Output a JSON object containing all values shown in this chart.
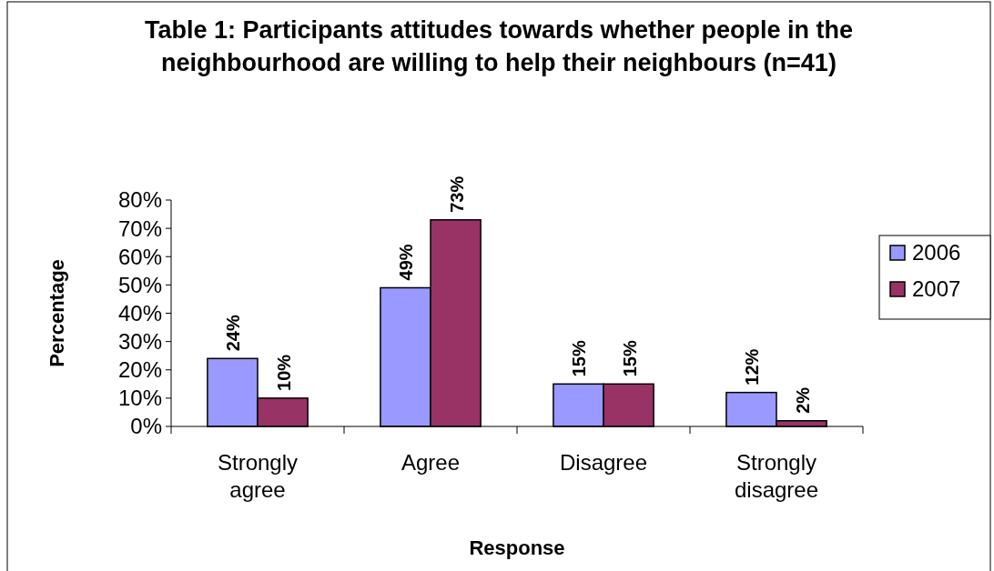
{
  "chart_data": {
    "type": "bar",
    "title": "Table 1: Participants attitudes towards whether people in the neighbourhood are willing to help their neighbours (n=41)",
    "xlabel": "Response",
    "ylabel": "Percentage",
    "categories": [
      "Strongly agree",
      "Agree",
      "Disagree",
      "Strongly disagree"
    ],
    "series": [
      {
        "name": "2006",
        "color": "#9999ff",
        "values": [
          24,
          49,
          15,
          12
        ],
        "value_labels": [
          "24%",
          "49%",
          "15%",
          "12%"
        ]
      },
      {
        "name": "2007",
        "color": "#993366",
        "values": [
          10,
          73,
          15,
          2
        ],
        "value_labels": [
          "10%",
          "73%",
          "15%",
          "2%"
        ]
      }
    ],
    "ylim": [
      0,
      80
    ],
    "yticks": [
      {
        "value": 0,
        "label": "0%"
      },
      {
        "value": 10,
        "label": "10%"
      },
      {
        "value": 20,
        "label": "20%"
      },
      {
        "value": 30,
        "label": "30%"
      },
      {
        "value": 40,
        "label": "40%"
      },
      {
        "value": 50,
        "label": "50%"
      },
      {
        "value": 60,
        "label": "60%"
      },
      {
        "value": 70,
        "label": "70%"
      },
      {
        "value": 80,
        "label": "80%"
      }
    ],
    "legend": "right",
    "grid": false
  }
}
